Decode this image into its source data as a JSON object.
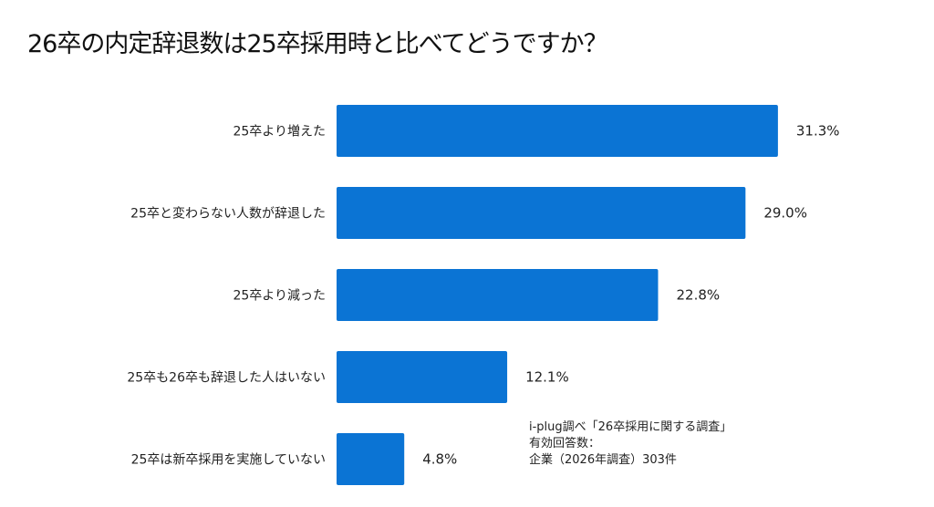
{
  "chart_data": {
    "type": "bar",
    "orientation": "horizontal",
    "title": "26卒の内定辞退数は25卒採用時と比べてどうですか？",
    "categories": [
      "25卒より増えた",
      "25卒と変わらない人数が辞退した",
      "25卒より減った",
      "25卒も26卒も辞退した人はいない",
      "25卒は新卒採用を実施していない"
    ],
    "values": [
      31.3,
      29.0,
      22.8,
      12.1,
      4.8
    ],
    "value_labels": [
      "31.3%",
      "29.0%",
      "22.8%",
      "12.1%",
      "4.8%"
    ],
    "unit": "%",
    "grid": false,
    "bar_color": "#0b74d4"
  },
  "note": [
    "i-plug調べ「26卒採用に関する調査」",
    "有効回答数：",
    "企業（2026年調査）303件"
  ]
}
